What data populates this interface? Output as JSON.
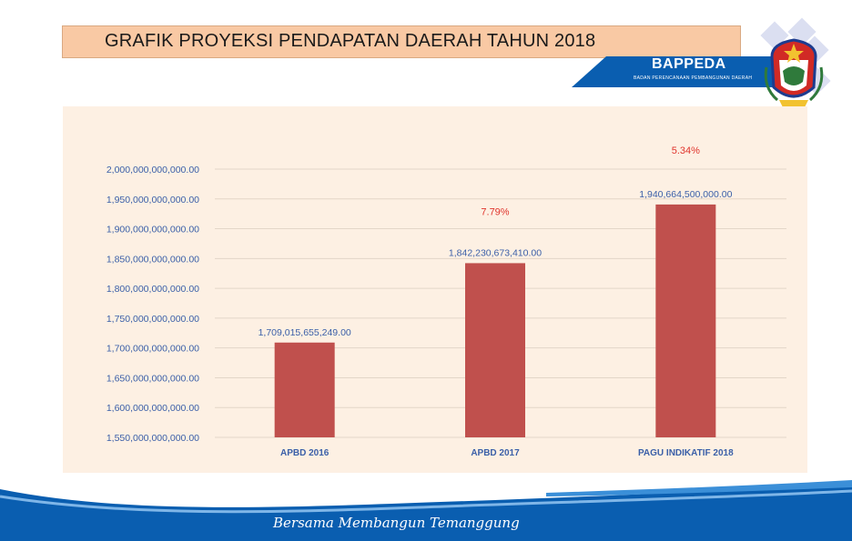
{
  "header": {
    "title": "GRAFIK PROYEKSI PENDAPATAN DAERAH TAHUN 2018",
    "brand": "BAPPEDA",
    "brand_subtitle": "BADAN PERENCANAAN PEMBANGUNAN DAERAH"
  },
  "footer": {
    "tagline": "Bersama Membangun Temanggung"
  },
  "colors": {
    "bar": "#c0504d",
    "growth_label": "#e0342c",
    "tick_label": "#3a5fa8",
    "axis_text": "#4a6fb4",
    "panel_bg": "#fdf0e3",
    "footer_blue": "#0a5eb0"
  },
  "chart_data": {
    "type": "bar",
    "title": "GRAFIK PROYEKSI PENDAPATAN DAERAH TAHUN 2018",
    "xlabel": "",
    "ylabel": "",
    "categories": [
      "APBD 2016",
      "APBD 2017",
      "PAGU INDIKATIF 2018"
    ],
    "values": [
      1709015655249.0,
      1842230673410.0,
      1940664500000.0
    ],
    "value_labels": [
      "1,709,015,655,249.00",
      "1,842,230,673,410.00",
      "1,940,664,500,000.00"
    ],
    "growth_labels": [
      "",
      "7.79%",
      "5.34%"
    ],
    "ylim": [
      1550000000000,
      2000000000000
    ],
    "y_ticks": [
      "1,550,000,000,000.00",
      "1,600,000,000,000.00",
      "1,650,000,000,000.00",
      "1,700,000,000,000.00",
      "1,750,000,000,000.00",
      "1,800,000,000,000.00",
      "1,850,000,000,000.00",
      "1,900,000,000,000.00",
      "1,950,000,000,000.00",
      "2,000,000,000,000.00"
    ],
    "grid": true,
    "legend": "none"
  }
}
